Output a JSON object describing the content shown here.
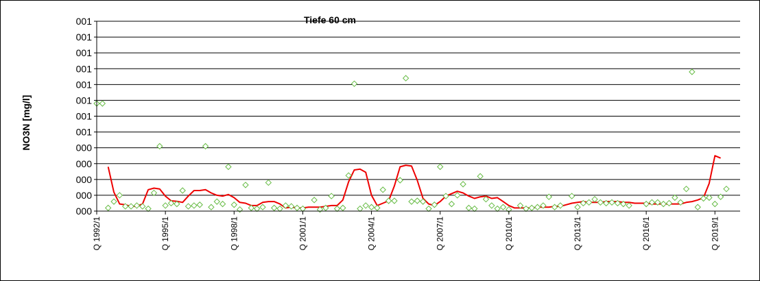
{
  "chart_data": {
    "type": "scatter",
    "title": "Tiefe  60 cm",
    "ylabel": "NO3N [mg/l]",
    "xlabel": "",
    "ytick_labels": [
      "000",
      "000",
      "000",
      "000",
      "000",
      "001",
      "001",
      "001",
      "001",
      "001",
      "001",
      "001",
      "001"
    ],
    "ylim": [
      0,
      12
    ],
    "xlim": [
      1992.0,
      2020.1
    ],
    "xtick_labels": [
      "Q 1992/1",
      "Q 1995/1",
      "Q 1998/1",
      "Q 2001/1",
      "Q 2004/1",
      "Q 2007/1",
      "Q 2010/1",
      "Q 2013/1",
      "Q 2016/1",
      "Q 2019/1"
    ],
    "xtick_positions": [
      1992,
      1995,
      1998,
      2001,
      2004,
      2007,
      2010,
      2013,
      2016,
      2019
    ],
    "grid": true,
    "colors": {
      "points": "#66bb44",
      "line": "#ee0000",
      "grid": "#000000"
    },
    "series": [
      {
        "style": "markers",
        "x": [
          1992.0,
          1992.25,
          1992.5,
          1992.75,
          1993.0,
          1993.25,
          1993.5,
          1993.75,
          1994.0,
          1994.25,
          1994.5,
          1994.75,
          1995.0,
          1995.25,
          1995.5,
          1995.75,
          1996.0,
          1996.25,
          1996.5,
          1996.75,
          1997.0,
          1997.25,
          1997.5,
          1997.75,
          1998.0,
          1998.25,
          1998.5,
          1998.75,
          1999.0,
          1999.25,
          1999.5,
          1999.75,
          2000.0,
          2000.25,
          2000.5,
          2000.75,
          2001.0,
          2001.5,
          2001.75,
          2002.0,
          2002.25,
          2002.5,
          2002.75,
          2003.0,
          2003.25,
          2003.5,
          2003.75,
          2004.0,
          2004.25,
          2004.5,
          2004.75,
          2005.0,
          2005.25,
          2005.5,
          2005.75,
          2006.0,
          2006.25,
          2006.5,
          2006.75,
          2007.0,
          2007.25,
          2007.5,
          2007.75,
          2008.0,
          2008.25,
          2008.5,
          2008.75,
          2009.0,
          2009.25,
          2009.5,
          2009.75,
          2010.0,
          2010.5,
          2010.75,
          2011.0,
          2011.25,
          2011.5,
          2011.75,
          2012.0,
          2012.25,
          2012.75,
          2013.0,
          2013.25,
          2013.5,
          2013.75,
          2014.0,
          2014.25,
          2014.5,
          2014.75,
          2015.0,
          2015.25,
          2016.0,
          2016.25,
          2016.5,
          2016.75,
          2017.0,
          2017.25,
          2017.5,
          2017.75,
          2018.0,
          2018.25,
          2018.5,
          2018.75,
          2019.0,
          2019.25,
          2019.5
        ],
        "y": [
          6.8,
          6.8,
          0.2,
          0.6,
          1.0,
          0.3,
          0.3,
          0.35,
          0.3,
          0.15,
          1.15,
          4.1,
          0.35,
          0.5,
          0.45,
          1.3,
          0.3,
          0.35,
          0.4,
          4.1,
          0.25,
          0.6,
          0.45,
          2.8,
          0.4,
          0.1,
          1.65,
          0.2,
          0.15,
          0.25,
          1.8,
          0.2,
          0.15,
          0.35,
          0.3,
          0.2,
          0.15,
          0.7,
          0.1,
          0.2,
          0.95,
          0.15,
          0.2,
          2.25,
          8.05,
          0.15,
          0.35,
          0.25,
          0.2,
          1.35,
          0.65,
          0.65,
          1.95,
          8.4,
          0.6,
          0.65,
          0.6,
          0.15,
          0.4,
          2.8,
          0.95,
          0.45,
          1.0,
          1.7,
          0.2,
          0.15,
          2.2,
          0.75,
          0.35,
          0.15,
          0.25,
          0.1,
          0.35,
          0.15,
          0.2,
          0.25,
          0.35,
          0.9,
          0.25,
          0.35,
          0.95,
          0.25,
          0.5,
          0.55,
          0.75,
          0.55,
          0.5,
          0.55,
          0.5,
          0.45,
          0.35,
          0.45,
          0.55,
          0.55,
          0.45,
          0.5,
          0.85,
          0.55,
          1.4,
          8.8,
          0.25,
          0.8,
          0.85,
          0.45,
          0.9,
          1.4
        ],
        "x_extra": [
          2016.0,
          2016.25,
          2016.5,
          2016.75
        ],
        "y_extra": [
          0.55,
          0.45,
          0.5,
          0.55
        ]
      },
      {
        "style": "line",
        "x": [
          1992.5,
          1992.75,
          1993.0,
          1993.25,
          1993.5,
          1993.75,
          1994.0,
          1994.25,
          1994.5,
          1994.75,
          1995.0,
          1995.25,
          1995.5,
          1995.75,
          1996.0,
          1996.25,
          1996.5,
          1996.75,
          1997.0,
          1997.25,
          1997.5,
          1997.75,
          1998.0,
          1998.25,
          1998.5,
          1998.75,
          1999.0,
          1999.25,
          1999.5,
          1999.75,
          2000.0,
          2000.25,
          2000.5,
          2000.75,
          2001.0,
          2001.25,
          2001.5,
          2001.75,
          2002.0,
          2002.25,
          2002.5,
          2002.75,
          2003.0,
          2003.25,
          2003.5,
          2003.75,
          2004.0,
          2004.25,
          2004.5,
          2004.75,
          2005.0,
          2005.25,
          2005.5,
          2005.75,
          2006.0,
          2006.25,
          2006.5,
          2006.75,
          2007.0,
          2007.25,
          2007.5,
          2007.75,
          2008.0,
          2008.25,
          2008.5,
          2008.75,
          2009.0,
          2009.25,
          2009.5,
          2009.75,
          2010.0,
          2010.25,
          2010.5,
          2010.75,
          2011.0,
          2011.25,
          2011.5,
          2011.75,
          2012.0,
          2012.25,
          2012.5,
          2012.75,
          2013.0,
          2013.25,
          2013.5,
          2013.75,
          2014.0,
          2014.25,
          2014.5,
          2014.75,
          2015.0,
          2015.25,
          2015.5,
          2015.75,
          2016.0,
          2016.25,
          2016.5,
          2016.75,
          2017.0,
          2017.25,
          2017.5,
          2017.75,
          2018.0,
          2018.25,
          2018.5,
          2018.75,
          2019.0,
          2019.25
        ],
        "y": [
          2.8,
          1.2,
          0.45,
          0.4,
          0.3,
          0.3,
          0.45,
          1.35,
          1.45,
          1.4,
          0.95,
          0.65,
          0.62,
          0.55,
          0.95,
          1.3,
          1.3,
          1.35,
          1.15,
          1.0,
          0.95,
          1.05,
          0.85,
          0.55,
          0.5,
          0.35,
          0.35,
          0.55,
          0.6,
          0.6,
          0.45,
          0.2,
          0.25,
          0.2,
          0.2,
          0.25,
          0.25,
          0.25,
          0.3,
          0.35,
          0.35,
          0.7,
          1.85,
          2.6,
          2.65,
          2.45,
          1.0,
          0.35,
          0.5,
          0.65,
          1.6,
          2.8,
          2.9,
          2.85,
          1.95,
          0.8,
          0.45,
          0.35,
          0.6,
          0.95,
          1.1,
          1.25,
          1.15,
          0.95,
          0.8,
          0.9,
          0.95,
          0.8,
          0.85,
          0.6,
          0.35,
          0.2,
          0.2,
          0.2,
          0.2,
          0.25,
          0.25,
          0.25,
          0.3,
          0.3,
          0.4,
          0.5,
          0.55,
          0.6,
          0.55,
          0.55,
          0.55,
          0.6,
          0.6,
          0.6,
          0.55,
          0.55,
          0.5,
          0.5,
          0.5,
          0.45,
          0.45,
          0.45,
          0.45,
          0.45,
          0.45,
          0.55,
          0.6,
          0.7,
          0.85,
          1.75,
          3.5,
          3.35
        ]
      }
    ]
  }
}
